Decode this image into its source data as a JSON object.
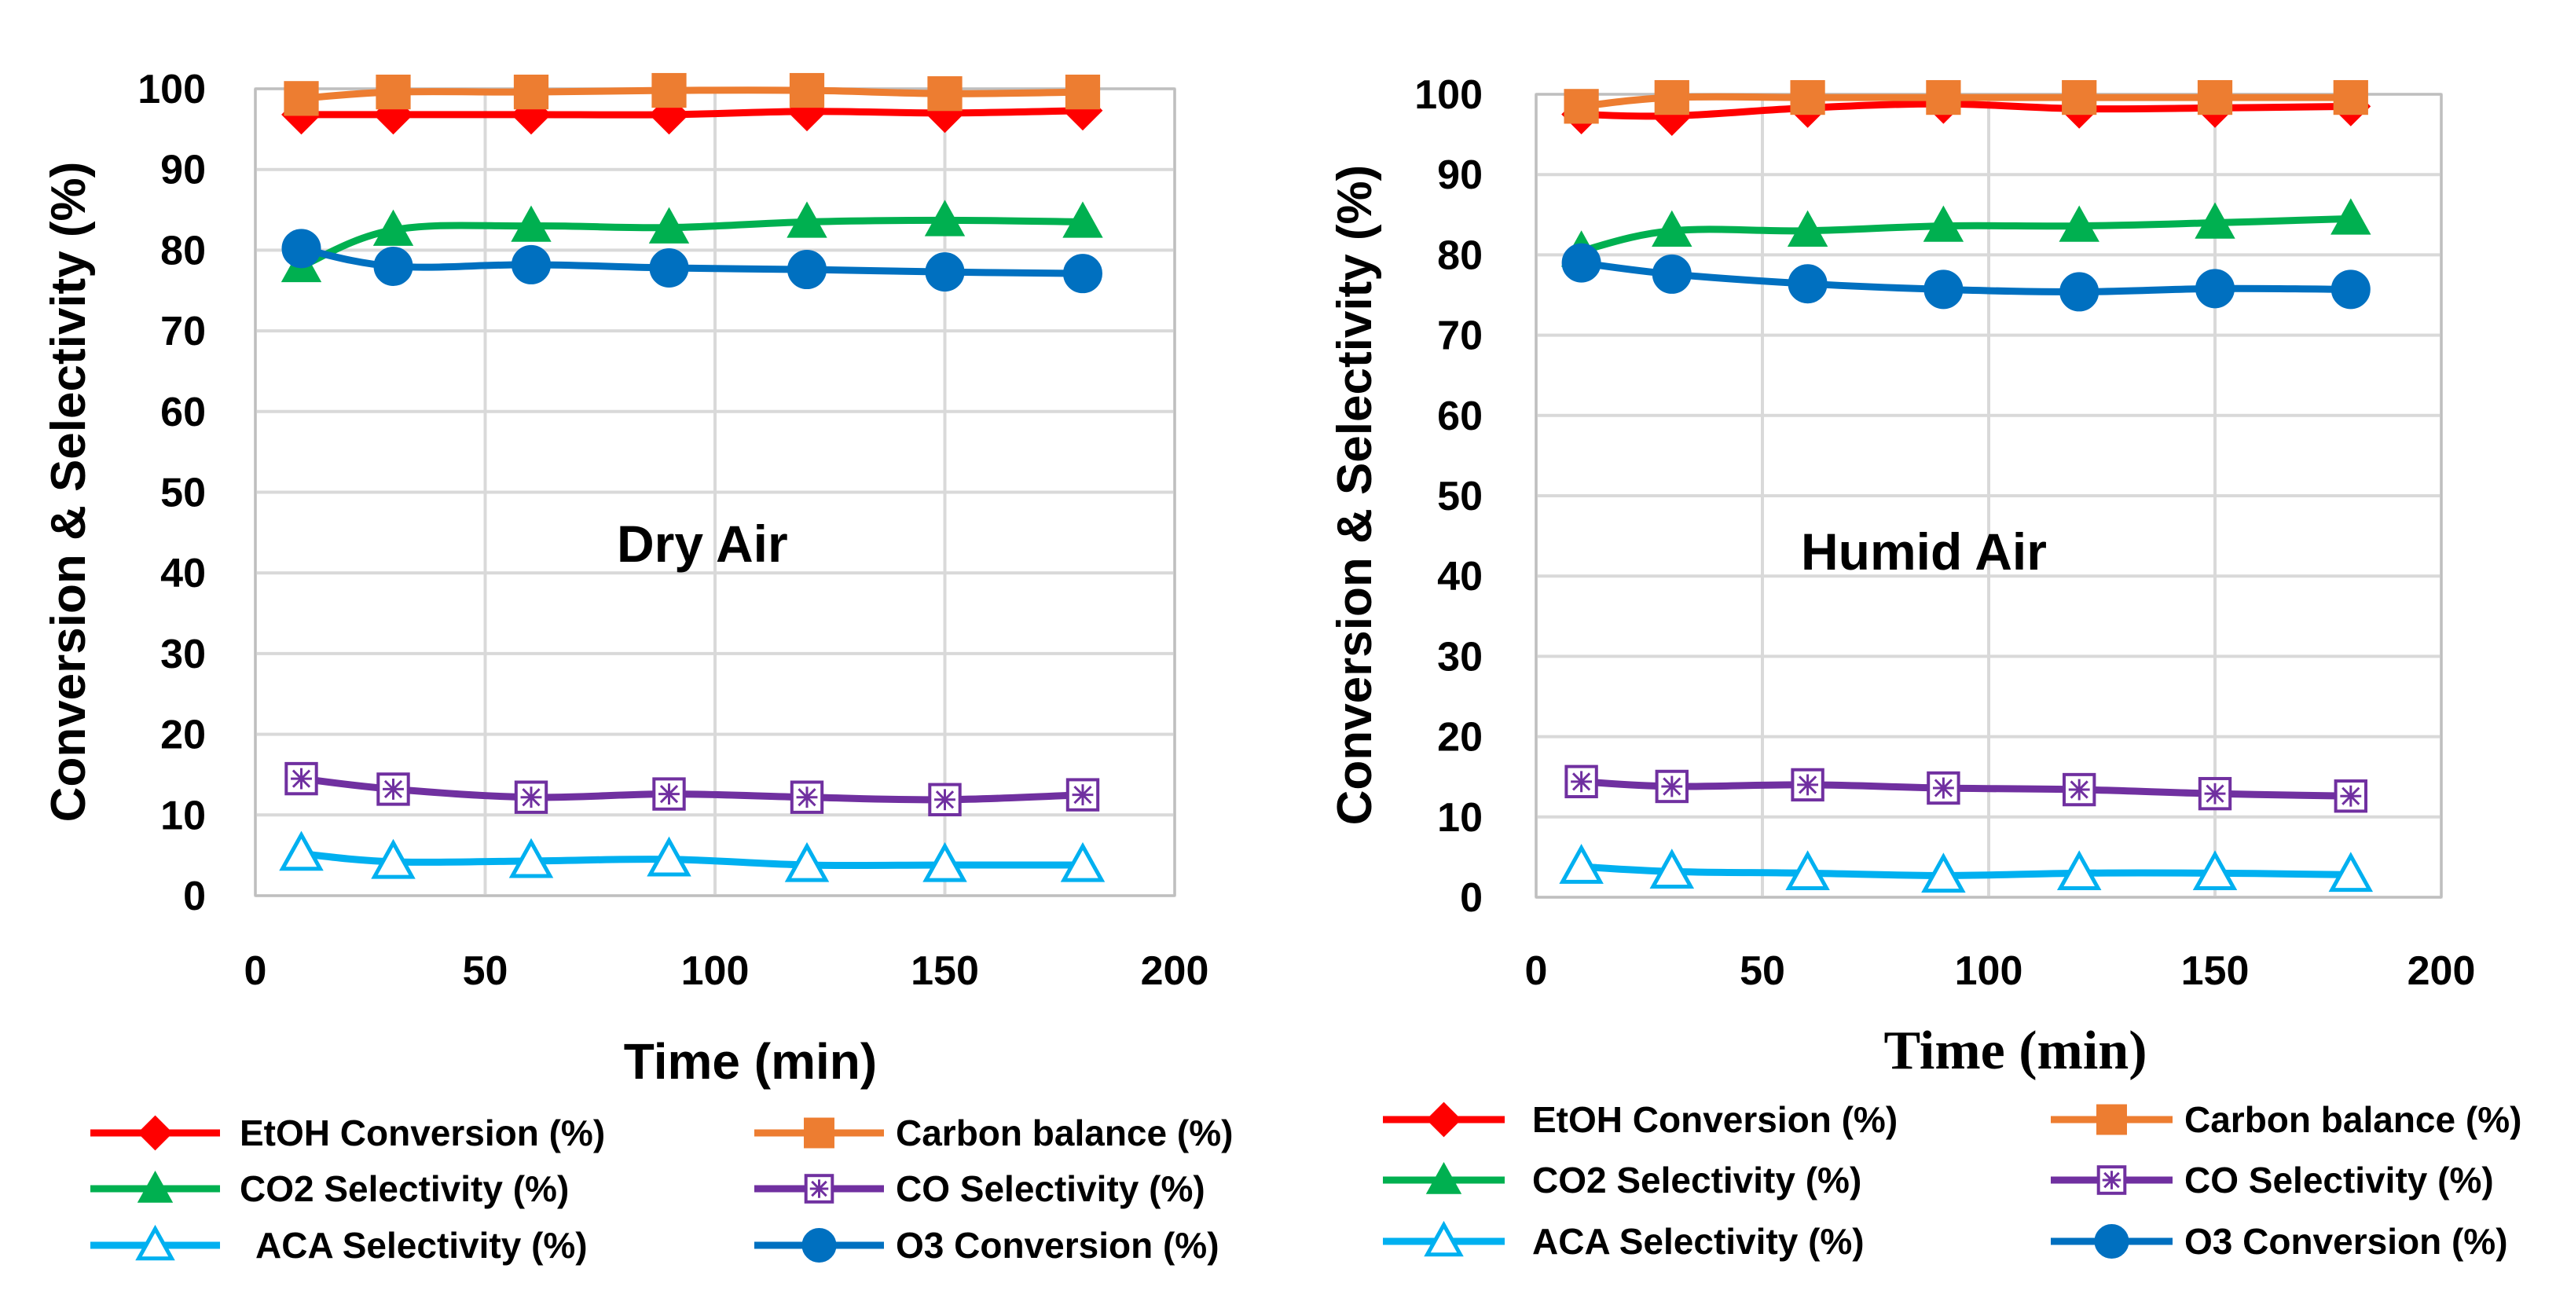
{
  "chart_data": [
    {
      "type": "line",
      "title": "",
      "annotation": "Dry Air",
      "xlabel": "Time (min)",
      "ylabel": "Conversion & Selectivity (%)",
      "xlim": [
        0,
        200
      ],
      "ylim": [
        0,
        100
      ],
      "x_ticks": [
        "0",
        "50",
        "100",
        "150",
        "200"
      ],
      "y_ticks": [
        "0",
        "10",
        "20",
        "30",
        "40",
        "50",
        "60",
        "70",
        "80",
        "90",
        "100"
      ],
      "grid": true,
      "x": [
        10,
        30,
        60,
        90,
        120,
        150,
        180
      ],
      "series": [
        {
          "name": "EtOH Conversion (%)",
          "color": "#ff0000",
          "marker": "diamond",
          "values": [
            96.8,
            96.8,
            96.8,
            96.8,
            97.2,
            97.0,
            97.3
          ]
        },
        {
          "name": "Carbon balance (%)",
          "color": "#ed7d31",
          "marker": "square",
          "values": [
            98.8,
            99.6,
            99.6,
            99.8,
            99.8,
            99.4,
            99.6
          ]
        },
        {
          "name": "CO2 Selectivity (%)",
          "color": "#00b050",
          "marker": "triangle",
          "values": [
            78.0,
            82.5,
            83.0,
            82.8,
            83.5,
            83.7,
            83.5
          ]
        },
        {
          "name": "CO Selectivity (%)",
          "color": "#7030a0",
          "marker": "square-x",
          "values": [
            14.5,
            13.2,
            12.2,
            12.6,
            12.2,
            11.9,
            12.5
          ]
        },
        {
          "name": "ACA Selectivity (%)",
          "color": "#00b0f0",
          "marker": "triangle-open",
          "values": [
            5.2,
            4.2,
            4.3,
            4.5,
            3.8,
            3.8,
            3.8
          ]
        },
        {
          "name": "O3 Conversion (%)",
          "color": "#0070c0",
          "marker": "circle",
          "values": [
            80.2,
            78.0,
            78.2,
            77.8,
            77.6,
            77.3,
            77.1
          ]
        }
      ]
    },
    {
      "type": "line",
      "title": "",
      "annotation": "Humid Air",
      "xlabel": "Time (min)",
      "ylabel": "Conversion & Selectivity (%)",
      "xlim": [
        0,
        200
      ],
      "ylim": [
        0,
        100
      ],
      "x_ticks": [
        "0",
        "50",
        "100",
        "150",
        "200"
      ],
      "y_ticks": [
        "0",
        "10",
        "20",
        "30",
        "40",
        "50",
        "60",
        "70",
        "80",
        "90",
        "100"
      ],
      "grid": true,
      "x": [
        10,
        30,
        60,
        90,
        120,
        150,
        180
      ],
      "series": [
        {
          "name": "EtOH Conversion (%)",
          "color": "#ff0000",
          "marker": "diamond",
          "values": [
            97.5,
            97.3,
            98.3,
            98.8,
            98.2,
            98.3,
            98.5
          ]
        },
        {
          "name": "Carbon balance (%)",
          "color": "#ed7d31",
          "marker": "square",
          "values": [
            98.5,
            99.6,
            99.6,
            99.6,
            99.6,
            99.6,
            99.6
          ]
        },
        {
          "name": "CO2 Selectivity (%)",
          "color": "#00b050",
          "marker": "triangle",
          "values": [
            80.5,
            83.0,
            83.0,
            83.6,
            83.6,
            84.0,
            84.5
          ]
        },
        {
          "name": "CO Selectivity (%)",
          "color": "#7030a0",
          "marker": "square-x",
          "values": [
            14.4,
            13.8,
            14.0,
            13.6,
            13.4,
            12.9,
            12.6
          ]
        },
        {
          "name": "ACA Selectivity (%)",
          "color": "#00b0f0",
          "marker": "triangle-open",
          "values": [
            3.8,
            3.2,
            3.0,
            2.7,
            3.0,
            3.0,
            2.8
          ]
        },
        {
          "name": "O3 Conversion (%)",
          "color": "#0070c0",
          "marker": "circle",
          "values": [
            79.0,
            77.6,
            76.4,
            75.7,
            75.4,
            75.8,
            75.7
          ]
        }
      ]
    }
  ]
}
